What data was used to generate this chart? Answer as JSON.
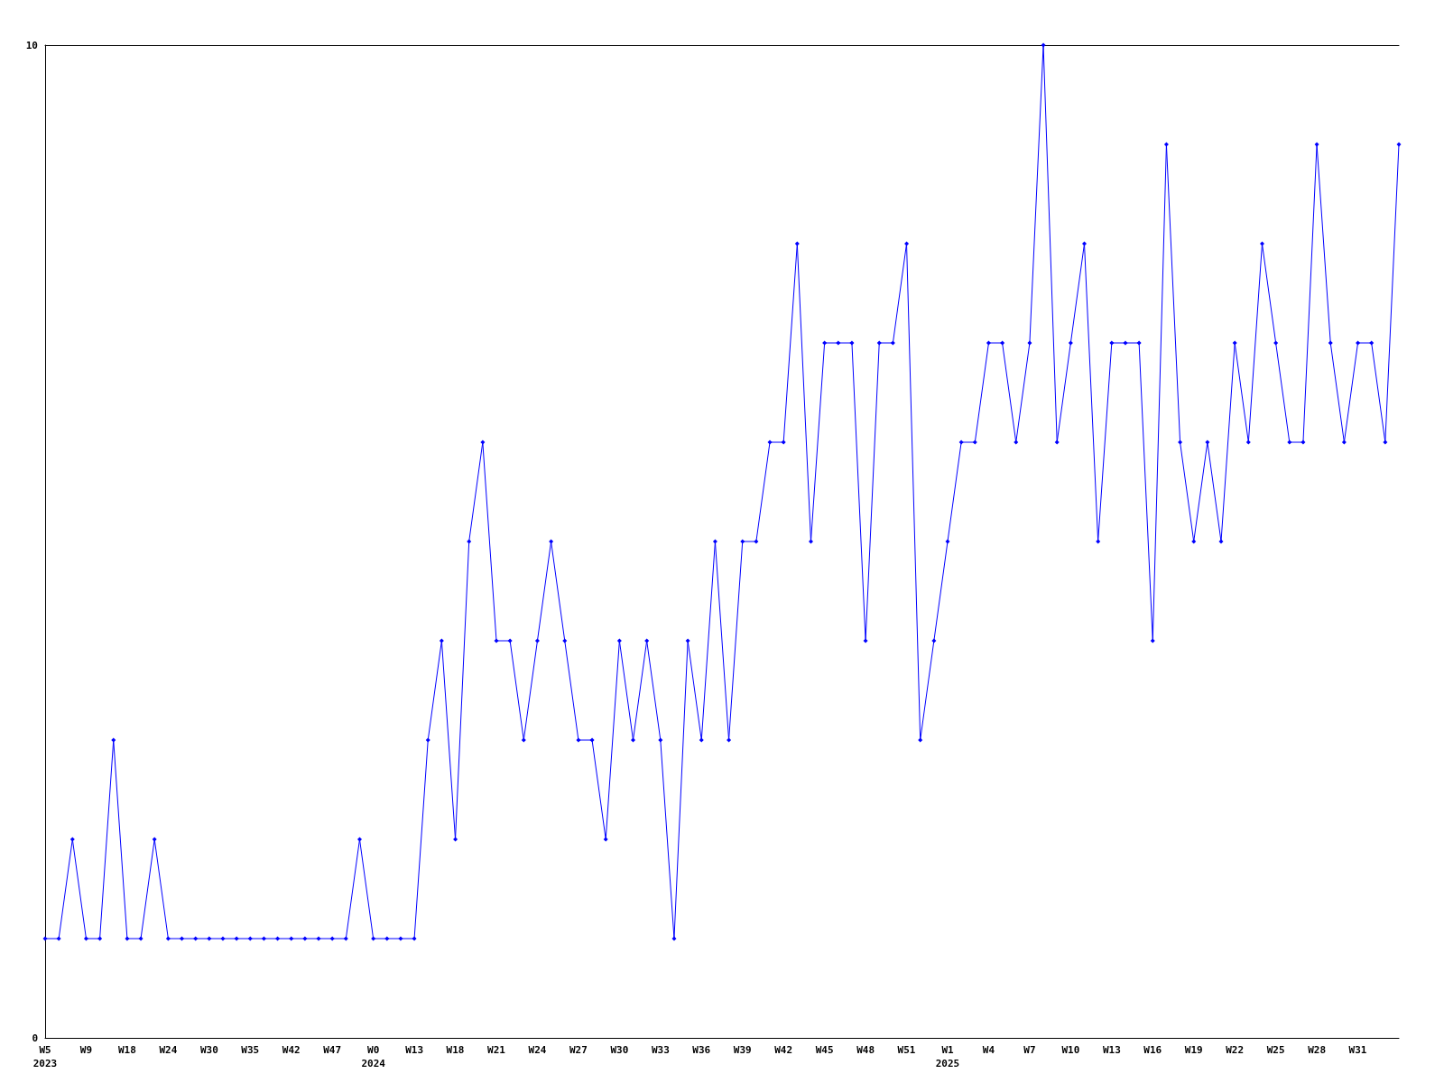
{
  "chart_data": {
    "type": "line",
    "categories": [
      "W5\n2023",
      null,
      null,
      "W9",
      null,
      null,
      "W18",
      null,
      null,
      "W24",
      null,
      null,
      "W30",
      null,
      null,
      "W35",
      null,
      null,
      "W42",
      null,
      null,
      "W47",
      null,
      null,
      "W0\n2024",
      null,
      null,
      "W13",
      null,
      null,
      "W18",
      null,
      null,
      "W21",
      null,
      null,
      "W24",
      null,
      null,
      "W27",
      null,
      null,
      "W30",
      null,
      null,
      "W33",
      null,
      null,
      "W36",
      null,
      null,
      "W39",
      null,
      null,
      "W42",
      null,
      null,
      "W45",
      null,
      null,
      "W48",
      null,
      null,
      "W51",
      null,
      null,
      "W1\n2025",
      null,
      null,
      "W4",
      null,
      null,
      "W7",
      null,
      null,
      "W10",
      null,
      null,
      "W13",
      null,
      null,
      "W16",
      null,
      null,
      "W19",
      null,
      null,
      "W22",
      null,
      null,
      "W25",
      null,
      null,
      "W28",
      null,
      null,
      "W31",
      null,
      null,
      null
    ],
    "series": [
      {
        "color": "#0000ff",
        "values": [
          1,
          1,
          2,
          1,
          1,
          3,
          1,
          1,
          2,
          1,
          1,
          1,
          1,
          1,
          1,
          1,
          1,
          1,
          1,
          1,
          1,
          1,
          1,
          2,
          1,
          1,
          1,
          1,
          3,
          4,
          2,
          5,
          6,
          4,
          4,
          3,
          4,
          5,
          4,
          3,
          3,
          2,
          4,
          3,
          4,
          3,
          1,
          4,
          3,
          5,
          3,
          5,
          5,
          6,
          6,
          8,
          5,
          7,
          7,
          7,
          4,
          7,
          7,
          8,
          3,
          4,
          5,
          6,
          6,
          7,
          7,
          6,
          7,
          10,
          6,
          7,
          8,
          5,
          7,
          7,
          7,
          4,
          9,
          6,
          5,
          6,
          5,
          7,
          6,
          8,
          7,
          6,
          6,
          9,
          7,
          6,
          7,
          7,
          6,
          9
        ]
      }
    ],
    "ylim": [
      0,
      10
    ],
    "yticks": [
      0,
      10
    ],
    "marker": "diamond",
    "line_style": "solid"
  }
}
